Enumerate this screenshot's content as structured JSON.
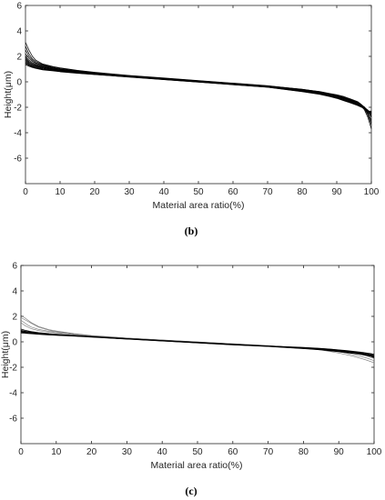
{
  "figure": {
    "panels": [
      {
        "label": "(b)"
      },
      {
        "label": "(c)"
      }
    ]
  },
  "chart_data": [
    {
      "type": "line",
      "panel": "(b)",
      "title": "",
      "xlabel": "Material area ratio(%)",
      "ylabel": "Height(μm)",
      "xlim": [
        0,
        100
      ],
      "ylim": [
        -8,
        6
      ],
      "xticks": [
        0,
        10,
        20,
        30,
        40,
        50,
        60,
        70,
        80,
        90,
        100
      ],
      "yticks": [
        -6,
        -4,
        -2,
        0,
        2,
        4,
        6
      ],
      "grid": false,
      "legend": "none",
      "line_color": "#000000",
      "x": [
        0,
        1,
        2,
        3,
        5,
        8,
        10,
        15,
        20,
        30,
        40,
        50,
        60,
        70,
        80,
        85,
        88,
        90,
        92,
        94,
        96,
        97,
        98,
        99,
        100
      ],
      "series": [
        {
          "values": [
            3.1,
            2.5,
            2.0,
            1.7,
            1.4,
            1.2,
            1.1,
            0.9,
            0.75,
            0.5,
            0.3,
            0.1,
            -0.1,
            -0.3,
            -0.6,
            -0.8,
            -1.0,
            -1.1,
            -1.25,
            -1.45,
            -1.7,
            -1.9,
            -2.2,
            -2.8,
            -3.7
          ]
        },
        {
          "values": [
            2.8,
            2.2,
            1.8,
            1.6,
            1.35,
            1.15,
            1.05,
            0.88,
            0.72,
            0.48,
            0.28,
            0.08,
            -0.12,
            -0.32,
            -0.58,
            -0.78,
            -0.95,
            -1.05,
            -1.2,
            -1.4,
            -1.65,
            -1.85,
            -2.1,
            -2.6,
            -3.4
          ]
        },
        {
          "values": [
            2.5,
            2.0,
            1.7,
            1.5,
            1.3,
            1.1,
            1.0,
            0.85,
            0.7,
            0.46,
            0.26,
            0.06,
            -0.14,
            -0.34,
            -0.6,
            -0.76,
            -0.92,
            -1.02,
            -1.15,
            -1.35,
            -1.55,
            -1.75,
            -2.0,
            -2.45,
            -3.2
          ]
        },
        {
          "values": [
            2.2,
            1.85,
            1.6,
            1.45,
            1.25,
            1.08,
            0.98,
            0.83,
            0.68,
            0.45,
            0.25,
            0.05,
            -0.15,
            -0.35,
            -0.62,
            -0.8,
            -0.98,
            -1.08,
            -1.22,
            -1.4,
            -1.6,
            -1.8,
            -2.05,
            -2.5,
            -3.0
          ]
        },
        {
          "values": [
            2.0,
            1.7,
            1.5,
            1.38,
            1.2,
            1.05,
            0.95,
            0.8,
            0.66,
            0.44,
            0.24,
            0.04,
            -0.16,
            -0.36,
            -0.64,
            -0.82,
            -1.0,
            -1.1,
            -1.25,
            -1.42,
            -1.62,
            -1.78,
            -2.0,
            -2.35,
            -2.8
          ]
        },
        {
          "values": [
            1.9,
            1.6,
            1.42,
            1.32,
            1.16,
            1.02,
            0.93,
            0.78,
            0.65,
            0.43,
            0.23,
            0.03,
            -0.17,
            -0.37,
            -0.66,
            -0.85,
            -1.03,
            -1.14,
            -1.28,
            -1.45,
            -1.65,
            -1.8,
            -1.98,
            -2.3,
            -2.7
          ]
        },
        {
          "values": [
            1.8,
            1.52,
            1.36,
            1.27,
            1.12,
            0.99,
            0.9,
            0.76,
            0.63,
            0.42,
            0.22,
            0.02,
            -0.18,
            -0.38,
            -0.68,
            -0.88,
            -1.06,
            -1.17,
            -1.3,
            -1.48,
            -1.68,
            -1.82,
            -2.0,
            -2.25,
            -2.6
          ]
        },
        {
          "values": [
            1.7,
            1.45,
            1.3,
            1.22,
            1.08,
            0.96,
            0.88,
            0.74,
            0.62,
            0.41,
            0.21,
            0.01,
            -0.19,
            -0.39,
            -0.7,
            -0.9,
            -1.08,
            -1.2,
            -1.34,
            -1.52,
            -1.72,
            -1.86,
            -2.02,
            -2.22,
            -2.5
          ]
        },
        {
          "values": [
            1.6,
            1.38,
            1.25,
            1.17,
            1.04,
            0.93,
            0.85,
            0.72,
            0.6,
            0.4,
            0.2,
            0.0,
            -0.2,
            -0.4,
            -0.72,
            -0.92,
            -1.1,
            -1.22,
            -1.38,
            -1.56,
            -1.76,
            -1.9,
            -2.05,
            -2.25,
            -2.45
          ]
        },
        {
          "values": [
            1.5,
            1.32,
            1.2,
            1.12,
            1.0,
            0.9,
            0.83,
            0.7,
            0.59,
            0.39,
            0.19,
            -0.01,
            -0.21,
            -0.41,
            -0.74,
            -0.94,
            -1.12,
            -1.25,
            -1.42,
            -1.6,
            -1.8,
            -1.93,
            -2.08,
            -2.28,
            -2.4
          ]
        },
        {
          "values": [
            1.45,
            1.28,
            1.17,
            1.09,
            0.97,
            0.88,
            0.81,
            0.69,
            0.58,
            0.38,
            0.18,
            -0.02,
            -0.22,
            -0.42,
            -0.76,
            -0.96,
            -1.14,
            -1.28,
            -1.45,
            -1.63,
            -1.83,
            -1.96,
            -2.1,
            -2.3,
            -2.35
          ]
        },
        {
          "values": [
            1.35,
            1.22,
            1.12,
            1.05,
            0.94,
            0.86,
            0.79,
            0.67,
            0.57,
            0.37,
            0.17,
            -0.03,
            -0.23,
            -0.43,
            -0.78,
            -0.98,
            -1.16,
            -1.3,
            -1.48,
            -1.66,
            -1.86,
            -1.98,
            -2.12,
            -2.3,
            -2.3
          ]
        }
      ]
    },
    {
      "type": "line",
      "panel": "(c)",
      "title": "",
      "xlabel": "Material area ratio(%)",
      "ylabel": "Height(μm)",
      "xlim": [
        0,
        100
      ],
      "ylim": [
        -8,
        6
      ],
      "xticks": [
        0,
        10,
        20,
        30,
        40,
        50,
        60,
        70,
        80,
        90,
        100
      ],
      "yticks": [
        -6,
        -4,
        -2,
        0,
        2,
        4,
        6
      ],
      "grid": false,
      "legend": "none",
      "line_color": "#000000",
      "x": [
        0,
        1,
        2,
        3,
        5,
        8,
        10,
        15,
        20,
        30,
        40,
        50,
        60,
        70,
        80,
        85,
        88,
        90,
        92,
        94,
        96,
        97,
        98,
        99,
        100
      ],
      "series": [
        {
          "values": [
            2.1,
            1.9,
            1.7,
            1.5,
            1.2,
            0.95,
            0.85,
            0.65,
            0.5,
            0.3,
            0.15,
            0.0,
            -0.15,
            -0.3,
            -0.5,
            -0.65,
            -0.78,
            -0.88,
            -1.0,
            -1.12,
            -1.28,
            -1.36,
            -1.45,
            -1.55,
            -1.65
          ]
        },
        {
          "values": [
            1.9,
            1.75,
            1.6,
            1.45,
            1.15,
            0.9,
            0.8,
            0.62,
            0.48,
            0.29,
            0.14,
            -0.01,
            -0.16,
            -0.31,
            -0.48,
            -0.6,
            -0.7,
            -0.78,
            -0.88,
            -1.0,
            -1.12,
            -1.2,
            -1.28,
            -1.38,
            -1.48
          ]
        },
        {
          "values": [
            1.7,
            1.5,
            1.3,
            1.15,
            0.98,
            0.82,
            0.74,
            0.58,
            0.46,
            0.28,
            0.13,
            -0.02,
            -0.17,
            -0.32,
            -0.46,
            -0.55,
            -0.63,
            -0.7,
            -0.78,
            -0.88,
            -0.98,
            -1.05,
            -1.12,
            -1.22,
            -1.3
          ]
        },
        {
          "values": [
            1.5,
            1.3,
            1.15,
            1.02,
            0.88,
            0.76,
            0.7,
            0.56,
            0.45,
            0.27,
            0.12,
            -0.03,
            -0.18,
            -0.33,
            -0.45,
            -0.52,
            -0.58,
            -0.64,
            -0.72,
            -0.8,
            -0.9,
            -0.96,
            -1.02,
            -1.1,
            -1.18
          ]
        },
        {
          "values": [
            1.0,
            0.92,
            0.86,
            0.8,
            0.72,
            0.64,
            0.6,
            0.5,
            0.42,
            0.26,
            0.11,
            -0.04,
            -0.19,
            -0.32,
            -0.44,
            -0.52,
            -0.58,
            -0.63,
            -0.68,
            -0.74,
            -0.8,
            -0.84,
            -0.88,
            -0.92,
            -0.98
          ]
        },
        {
          "values": [
            0.9,
            0.85,
            0.8,
            0.76,
            0.69,
            0.62,
            0.58,
            0.49,
            0.41,
            0.25,
            0.1,
            -0.05,
            -0.2,
            -0.33,
            -0.46,
            -0.54,
            -0.61,
            -0.66,
            -0.71,
            -0.77,
            -0.84,
            -0.88,
            -0.92,
            -0.97,
            -1.05
          ]
        },
        {
          "values": [
            0.85,
            0.8,
            0.76,
            0.72,
            0.66,
            0.6,
            0.56,
            0.48,
            0.4,
            0.24,
            0.09,
            -0.06,
            -0.21,
            -0.34,
            -0.48,
            -0.56,
            -0.63,
            -0.69,
            -0.75,
            -0.81,
            -0.88,
            -0.92,
            -0.97,
            -1.02,
            -1.1
          ]
        },
        {
          "values": [
            0.8,
            0.76,
            0.72,
            0.69,
            0.64,
            0.58,
            0.55,
            0.47,
            0.39,
            0.23,
            0.08,
            -0.07,
            -0.22,
            -0.35,
            -0.5,
            -0.58,
            -0.66,
            -0.72,
            -0.78,
            -0.85,
            -0.92,
            -0.96,
            -1.0,
            -1.06,
            -1.15
          ]
        },
        {
          "values": [
            0.75,
            0.72,
            0.69,
            0.66,
            0.61,
            0.56,
            0.53,
            0.46,
            0.38,
            0.22,
            0.07,
            -0.08,
            -0.23,
            -0.36,
            -0.52,
            -0.61,
            -0.69,
            -0.75,
            -0.82,
            -0.88,
            -0.95,
            -0.99,
            -1.04,
            -1.1,
            -1.2
          ]
        },
        {
          "values": [
            0.7,
            0.68,
            0.65,
            0.63,
            0.59,
            0.54,
            0.51,
            0.45,
            0.37,
            0.21,
            0.06,
            -0.09,
            -0.24,
            -0.37,
            -0.54,
            -0.63,
            -0.72,
            -0.78,
            -0.85,
            -0.91,
            -0.98,
            -1.02,
            -1.07,
            -1.14,
            -1.25
          ]
        }
      ]
    }
  ]
}
